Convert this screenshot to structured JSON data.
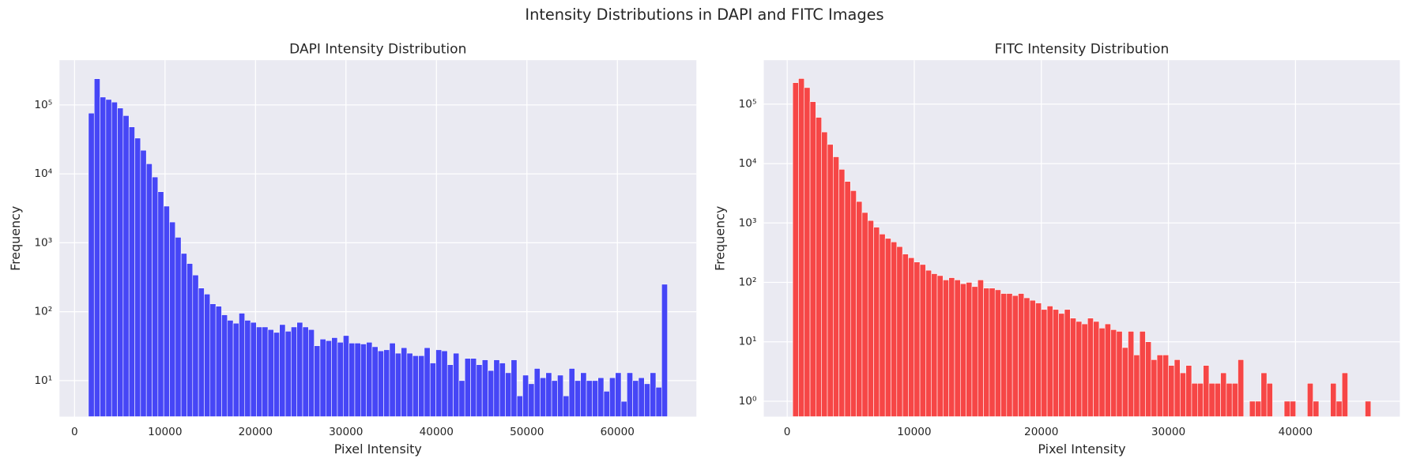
{
  "title": "Intensity Distributions in DAPI and FITC Images",
  "chart_data": [
    {
      "type": "histogram",
      "title": "DAPI Intensity Distribution",
      "x_label": "Pixel Intensity",
      "y_label": "Frequency",
      "color": "#4646f6",
      "log_y": true,
      "grid": true,
      "xlim": [
        -1665,
        68735
      ],
      "ylim": [
        3,
        446000
      ],
      "xticks": [
        0,
        10000,
        20000,
        30000,
        40000,
        50000,
        60000
      ],
      "yticks": [
        {
          "value": 10,
          "label": "10¹"
        },
        {
          "value": 100,
          "label": "10²"
        },
        {
          "value": 1000,
          "label": "10³"
        },
        {
          "value": 10000,
          "label": "10⁴"
        },
        {
          "value": 100000,
          "label": "10⁵"
        }
      ],
      "bins": [
        1535,
        2175,
        2815,
        3455,
        4095,
        4735,
        5375,
        6015,
        6655,
        7295,
        7935,
        8575,
        9215,
        9855,
        10495,
        11135,
        11775,
        12415,
        13055,
        13695,
        14335,
        14975,
        15615,
        16255,
        16895,
        17535,
        18175,
        18815,
        19455,
        20095,
        20735,
        21375,
        22015,
        22655,
        23295,
        23935,
        24575,
        25215,
        25855,
        26495,
        27135,
        27775,
        28415,
        29055,
        29695,
        30335,
        30975,
        31615,
        32255,
        32895,
        33535,
        34175,
        34815,
        35455,
        36095,
        36735,
        37375,
        38015,
        38655,
        39295,
        39935,
        40575,
        41215,
        41855,
        42495,
        43135,
        43775,
        44415,
        45055,
        45695,
        46335,
        46975,
        47615,
        48255,
        48895,
        49535,
        50175,
        50815,
        51455,
        52095,
        52735,
        53375,
        54015,
        54655,
        55295,
        55935,
        56575,
        57215,
        57855,
        58495,
        59135,
        59775,
        60415,
        61055,
        61695,
        62335,
        62975,
        63615,
        64255,
        64895,
        65535
      ],
      "values": [
        76000,
        240000,
        130000,
        120000,
        110000,
        90000,
        70000,
        48000,
        33000,
        22000,
        14000,
        9000,
        5500,
        3400,
        2000,
        1200,
        700,
        500,
        340,
        220,
        180,
        130,
        120,
        90,
        75,
        68,
        95,
        75,
        70,
        60,
        60,
        55,
        50,
        65,
        52,
        60,
        70,
        60,
        55,
        32,
        40,
        38,
        42,
        36,
        45,
        35,
        35,
        34,
        36,
        31,
        27,
        28,
        35,
        25,
        30,
        25,
        23,
        23,
        30,
        18,
        28,
        27,
        17,
        25,
        10,
        21,
        21,
        17,
        20,
        14,
        20,
        18,
        13,
        20,
        6,
        12,
        9,
        15,
        11,
        13,
        10,
        12,
        6,
        15,
        10,
        13,
        10,
        10,
        11,
        7,
        11,
        13,
        5,
        13,
        10,
        11,
        9,
        13,
        8,
        250
      ]
    },
    {
      "type": "histogram",
      "title": "FITC Intensity Distribution",
      "x_label": "Pixel Intensity",
      "y_label": "Frequency",
      "color": "#f64646",
      "log_y": true,
      "grid": true,
      "xlim": [
        -1840,
        48210
      ],
      "ylim": [
        0.55,
        550000
      ],
      "xticks": [
        0,
        10000,
        20000,
        30000,
        40000
      ],
      "yticks": [
        {
          "value": 1,
          "label": "10⁰"
        },
        {
          "value": 10,
          "label": "10¹"
        },
        {
          "value": 100,
          "label": "10²"
        },
        {
          "value": 1000,
          "label": "10³"
        },
        {
          "value": 10000,
          "label": "10⁴"
        },
        {
          "value": 100000,
          "label": "10⁵"
        }
      ],
      "bins": [
        435,
        890,
        1345,
        1800,
        2255,
        2710,
        3165,
        3620,
        4075,
        4530,
        4985,
        5440,
        5895,
        6350,
        6805,
        7260,
        7715,
        8170,
        8625,
        9080,
        9535,
        9990,
        10445,
        10900,
        11355,
        11810,
        12265,
        12720,
        13175,
        13630,
        14085,
        14540,
        14995,
        15450,
        15905,
        16360,
        16815,
        17270,
        17725,
        18180,
        18635,
        19090,
        19545,
        20000,
        20455,
        20910,
        21365,
        21820,
        22275,
        22730,
        23185,
        23640,
        24095,
        24550,
        25005,
        25460,
        25915,
        26370,
        26825,
        27280,
        27735,
        28190,
        28645,
        29100,
        29555,
        30010,
        30465,
        30920,
        31375,
        31830,
        32285,
        32740,
        33195,
        33650,
        34105,
        34560,
        35015,
        35470,
        35925,
        36380,
        36835,
        37290,
        37745,
        38200,
        38655,
        39110,
        39565,
        40020,
        40475,
        40930,
        41385,
        41840,
        42295,
        42750,
        43205,
        43660,
        44115,
        44570,
        45025,
        45480,
        45935
      ],
      "values": [
        230000,
        270000,
        190000,
        110000,
        60000,
        34000,
        21000,
        13000,
        8000,
        5000,
        3500,
        2300,
        1500,
        1100,
        850,
        650,
        550,
        480,
        400,
        300,
        260,
        220,
        200,
        160,
        140,
        130,
        110,
        120,
        110,
        95,
        100,
        85,
        110,
        80,
        80,
        75,
        65,
        65,
        60,
        65,
        55,
        50,
        45,
        35,
        40,
        35,
        30,
        35,
        25,
        22,
        20,
        25,
        22,
        17,
        20,
        16,
        15,
        8,
        15,
        6,
        15,
        10,
        5,
        6,
        6,
        4,
        5,
        3,
        4,
        2,
        2,
        4,
        2,
        2,
        3,
        2,
        2,
        5,
        0,
        1,
        1,
        3,
        2,
        0,
        0,
        1,
        1,
        0,
        0,
        2,
        1,
        0,
        0,
        2,
        1,
        3,
        0,
        0,
        0,
        1
      ]
    }
  ]
}
